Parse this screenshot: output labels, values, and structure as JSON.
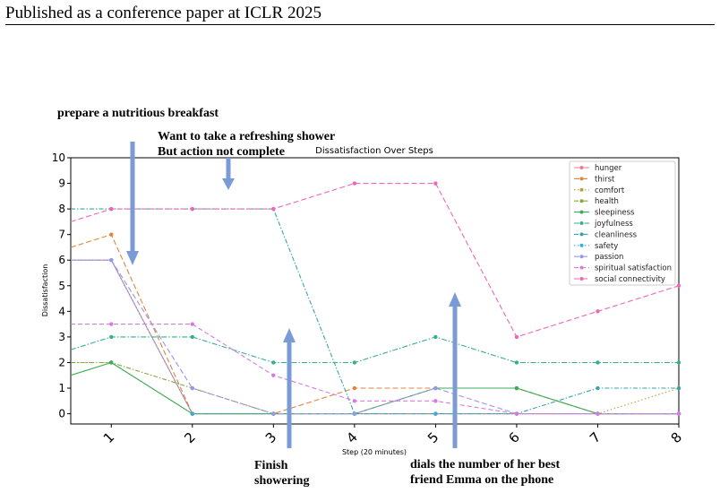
{
  "header": {
    "text": "Published as a conference paper at ICLR 2025"
  },
  "annotations": {
    "breakfast": "prepare a nutritious breakfast",
    "shower_line1": "Want to take a refreshing shower",
    "shower_line2": "But action not complete",
    "finish_line1": "Finish",
    "finish_line2": "showering",
    "dial_line1": "dials the number of her best",
    "dial_line2": "friend Emma on the phone"
  },
  "colors": {
    "arrow": "#7b9bd6"
  },
  "chart_data": {
    "type": "line",
    "title": "Dissatisfaction Over Steps",
    "xlabel": "Step (20 minutes)",
    "ylabel": "Dissatisfaction",
    "x": [
      0.5,
      1,
      2,
      3,
      4,
      5,
      6,
      7,
      8
    ],
    "x_ticks": [
      1,
      2,
      3,
      4,
      5,
      6,
      7,
      8
    ],
    "xlim": [
      0.5,
      8
    ],
    "ylim": [
      -0.4,
      10
    ],
    "y_ticks": [
      0,
      1,
      2,
      3,
      4,
      5,
      6,
      7,
      8,
      9,
      10
    ],
    "grid": false,
    "legend_position": "top-right",
    "series": [
      {
        "name": "hunger",
        "color": "#f07a91",
        "dash": "",
        "values": [
          6,
          6,
          0,
          0,
          0,
          0,
          0,
          0,
          0
        ]
      },
      {
        "name": "thirst",
        "color": "#e0843b",
        "dash": "6,3",
        "values": [
          6.5,
          7,
          0,
          0,
          1,
          1,
          1,
          0,
          0
        ]
      },
      {
        "name": "comfort",
        "color": "#b8a23c",
        "dash": "1.5,2.5",
        "values": [
          2,
          2,
          0,
          0,
          0,
          0,
          0,
          0,
          1
        ]
      },
      {
        "name": "health",
        "color": "#85a83a",
        "dash": "5,2,1.5,2",
        "values": [
          2,
          2,
          1,
          0,
          0,
          1,
          1,
          0,
          0
        ]
      },
      {
        "name": "sleepiness",
        "color": "#3aae5a",
        "dash": "",
        "values": [
          1.5,
          2,
          0,
          0,
          0,
          1,
          1,
          0,
          0
        ]
      },
      {
        "name": "joyfulness",
        "color": "#36ae8f",
        "dash": "6,2,1.5,2",
        "values": [
          2.5,
          3,
          3,
          2,
          2,
          3,
          2,
          2,
          2
        ]
      },
      {
        "name": "cleanliness",
        "color": "#36a6a6",
        "dash": "5,2,1.5,2",
        "values": [
          8,
          8,
          8,
          8,
          0,
          0,
          0,
          1,
          1
        ]
      },
      {
        "name": "safety",
        "color": "#3fa9dd",
        "dash": "1.5,2.5",
        "values": [
          6,
          6,
          0,
          0,
          0,
          0,
          0,
          0,
          0
        ]
      },
      {
        "name": "passion",
        "color": "#9a97e8",
        "dash": "6,3",
        "values": [
          6,
          6,
          1,
          0,
          0,
          1,
          0,
          0,
          0
        ]
      },
      {
        "name": "spiritual satisfaction",
        "color": "#d77be0",
        "dash": "5,3",
        "values": [
          3.5,
          3.5,
          3.5,
          1.5,
          0.5,
          0.5,
          0,
          0,
          0
        ]
      },
      {
        "name": "social connectivity",
        "color": "#ee67b6",
        "dash": "6,3",
        "values": [
          7.5,
          8,
          8,
          8,
          9,
          9,
          3,
          4,
          5
        ]
      }
    ]
  }
}
